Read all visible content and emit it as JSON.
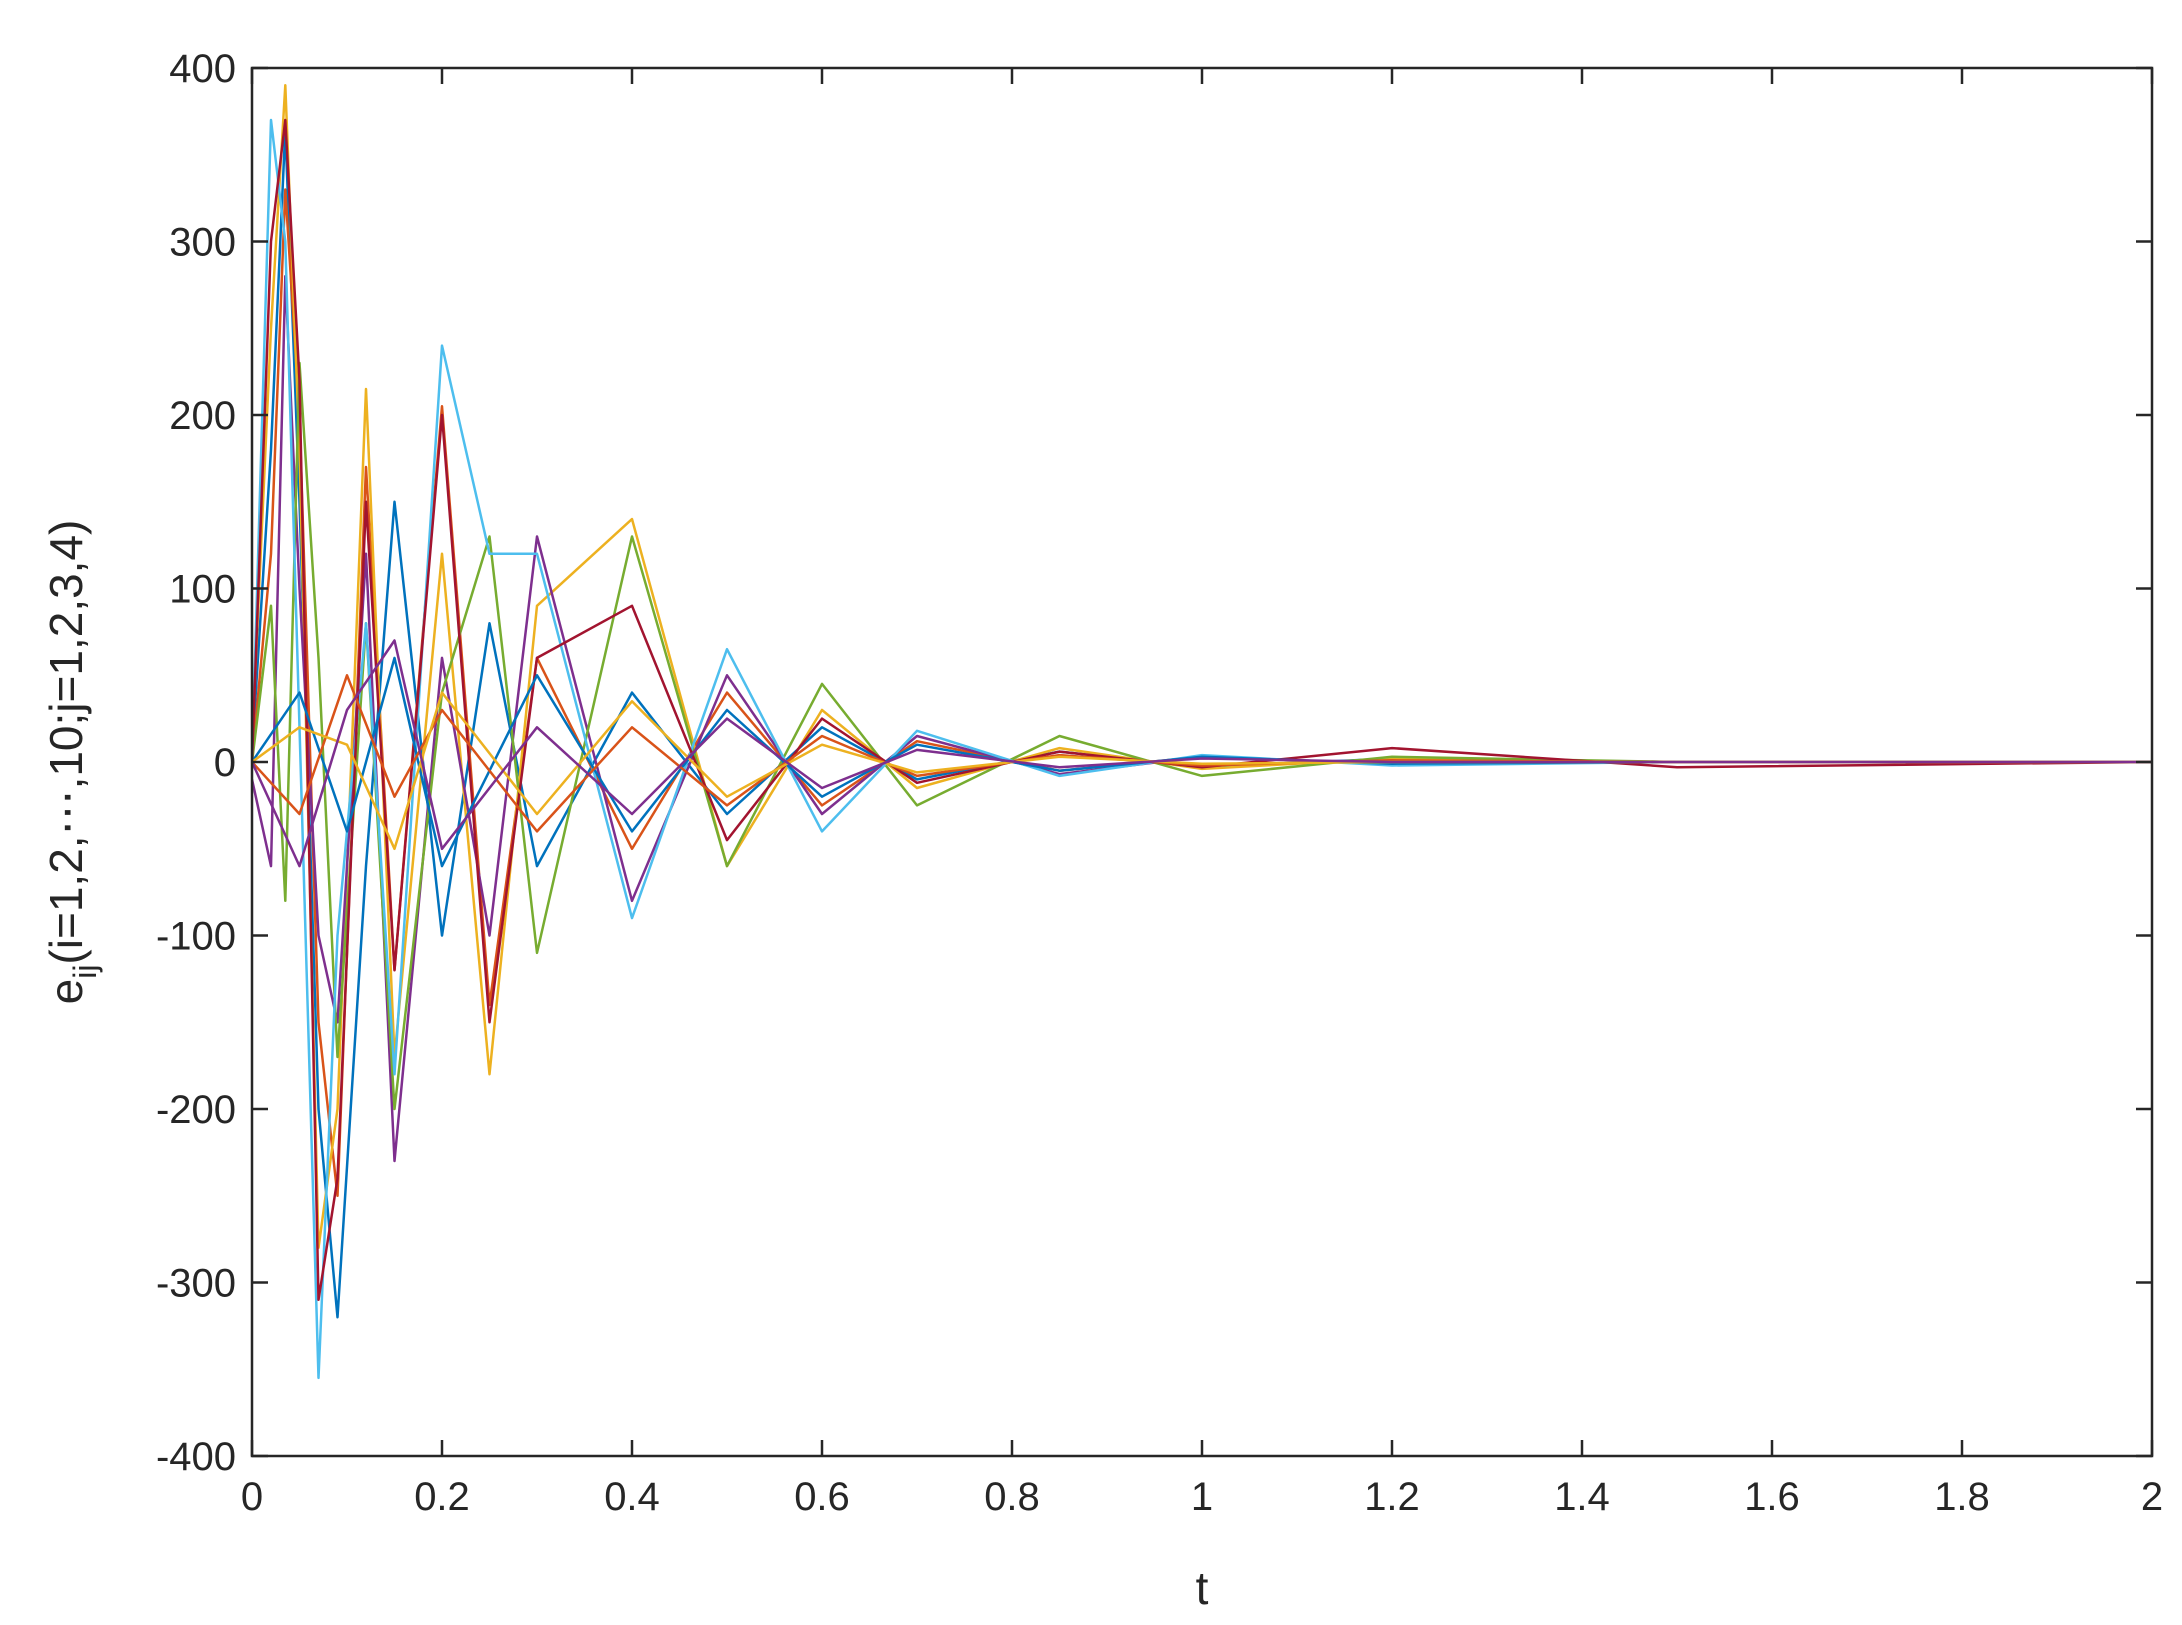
{
  "chart_data": {
    "type": "line",
    "title": "",
    "xlabel": "t",
    "ylabel": {
      "base": "e",
      "subscript": "ij",
      "rest": "(i=1,2,⋯,10;j=1,2,3,4)"
    },
    "xlim": [
      0,
      2
    ],
    "ylim": [
      -400,
      400
    ],
    "xticks": [
      0,
      0.2,
      0.4,
      0.6,
      0.8,
      1,
      1.2,
      1.4,
      1.6,
      1.8,
      2
    ],
    "xtick_labels": [
      "0",
      "0.2",
      "0.4",
      "0.6",
      "0.8",
      "1",
      "1.2",
      "1.4",
      "1.6",
      "1.8",
      "2"
    ],
    "yticks": [
      -400,
      -300,
      -200,
      -100,
      0,
      100,
      200,
      300,
      400
    ],
    "ytick_labels": [
      "-400",
      "-300",
      "-200",
      "-100",
      "0",
      "100",
      "200",
      "300",
      "400"
    ],
    "grid": false,
    "legend": "none",
    "colors": [
      "#0072BD",
      "#D95319",
      "#EDB120",
      "#7E2F8E",
      "#77AC30",
      "#4DBEEE",
      "#A2142F"
    ],
    "series": [
      {
        "x": [
          0,
          0.02,
          0.035,
          0.05,
          0.07,
          0.09,
          0.12,
          0.15,
          0.2,
          0.25,
          0.3,
          0.4,
          0.5,
          0.6,
          0.7,
          0.85,
          1.0,
          1.2,
          1.5,
          2.0
        ],
        "y": [
          5,
          180,
          365,
          150,
          -200,
          -320,
          -60,
          150,
          -100,
          80,
          -60,
          40,
          -30,
          20,
          -10,
          6,
          -3,
          2,
          0,
          0
        ]
      },
      {
        "x": [
          0,
          0.02,
          0.035,
          0.05,
          0.07,
          0.09,
          0.12,
          0.15,
          0.2,
          0.25,
          0.3,
          0.4,
          0.5,
          0.6,
          0.7,
          0.85,
          1.0,
          1.2,
          1.5,
          2.0
        ],
        "y": [
          0,
          120,
          330,
          200,
          -150,
          -250,
          170,
          -120,
          205,
          -140,
          60,
          -50,
          40,
          -25,
          12,
          -5,
          3,
          -1,
          0,
          0
        ]
      },
      {
        "x": [
          0,
          0.02,
          0.035,
          0.05,
          0.07,
          0.09,
          0.12,
          0.15,
          0.2,
          0.25,
          0.3,
          0.4,
          0.5,
          0.6,
          0.7,
          0.85,
          1.0,
          1.2,
          1.5,
          2.0
        ],
        "y": [
          10,
          250,
          390,
          180,
          -280,
          -200,
          215,
          -170,
          120,
          -180,
          90,
          140,
          -60,
          30,
          -15,
          8,
          -4,
          2,
          0,
          0
        ]
      },
      {
        "x": [
          0,
          0.02,
          0.035,
          0.05,
          0.07,
          0.09,
          0.12,
          0.15,
          0.2,
          0.25,
          0.3,
          0.4,
          0.5,
          0.6,
          0.7,
          0.85,
          1.0,
          1.2,
          1.5,
          2.0
        ],
        "y": [
          -10,
          -60,
          280,
          100,
          -100,
          -150,
          120,
          -230,
          60,
          -100,
          130,
          -80,
          50,
          -30,
          15,
          -7,
          3,
          -1,
          0,
          0
        ]
      },
      {
        "x": [
          0,
          0.02,
          0.035,
          0.05,
          0.07,
          0.09,
          0.12,
          0.15,
          0.2,
          0.25,
          0.3,
          0.4,
          0.5,
          0.6,
          0.7,
          0.85,
          1.0,
          1.2,
          1.5,
          2.0
        ],
        "y": [
          0,
          90,
          -80,
          230,
          60,
          -170,
          80,
          -200,
          40,
          130,
          -110,
          130,
          -60,
          45,
          -25,
          15,
          -8,
          3,
          0,
          0
        ]
      },
      {
        "x": [
          0,
          0.02,
          0.035,
          0.05,
          0.07,
          0.09,
          0.12,
          0.15,
          0.2,
          0.25,
          0.3,
          0.4,
          0.5,
          0.6,
          0.7,
          0.85,
          1.0,
          1.2,
          1.5,
          2.0
        ],
        "y": [
          0,
          370,
          300,
          20,
          -355,
          -100,
          80,
          -180,
          240,
          120,
          120,
          -90,
          65,
          -40,
          18,
          -8,
          4,
          -2,
          0,
          0
        ]
      },
      {
        "x": [
          0,
          0.02,
          0.035,
          0.05,
          0.07,
          0.09,
          0.12,
          0.15,
          0.2,
          0.25,
          0.3,
          0.4,
          0.5,
          0.6,
          0.7,
          0.85,
          1.0,
          1.2,
          1.5,
          2.0
        ],
        "y": [
          0,
          300,
          370,
          220,
          -310,
          -240,
          150,
          -120,
          200,
          -150,
          60,
          90,
          -45,
          25,
          -12,
          6,
          -3,
          8,
          -3,
          0
        ]
      },
      {
        "x": [
          0,
          0.05,
          0.1,
          0.15,
          0.2,
          0.3,
          0.4,
          0.5,
          0.6,
          0.7,
          0.85,
          1.0,
          1.2,
          1.5,
          2.0
        ],
        "y": [
          0,
          40,
          -40,
          60,
          -60,
          50,
          -40,
          30,
          -20,
          10,
          -5,
          3,
          -1,
          0,
          0
        ]
      },
      {
        "x": [
          0,
          0.05,
          0.1,
          0.15,
          0.2,
          0.3,
          0.4,
          0.5,
          0.6,
          0.7,
          0.85,
          1.0,
          1.2,
          1.5,
          2.0
        ],
        "y": [
          0,
          -30,
          50,
          -20,
          30,
          -40,
          20,
          -25,
          15,
          -8,
          4,
          -2,
          1,
          0,
          0
        ]
      },
      {
        "x": [
          0,
          0.05,
          0.1,
          0.15,
          0.2,
          0.3,
          0.4,
          0.5,
          0.6,
          0.7,
          0.85,
          1.0,
          1.2,
          1.5,
          2.0
        ],
        "y": [
          0,
          20,
          10,
          -50,
          40,
          -30,
          35,
          -20,
          10,
          -6,
          3,
          -1,
          0,
          0,
          0
        ]
      },
      {
        "x": [
          0,
          0.05,
          0.1,
          0.15,
          0.2,
          0.3,
          0.4,
          0.5,
          0.6,
          0.7,
          0.85,
          1.0,
          1.2,
          1.5,
          2.0
        ],
        "y": [
          0,
          -60,
          30,
          70,
          -50,
          20,
          -30,
          25,
          -15,
          7,
          -3,
          2,
          0,
          0,
          0
        ]
      }
    ]
  }
}
